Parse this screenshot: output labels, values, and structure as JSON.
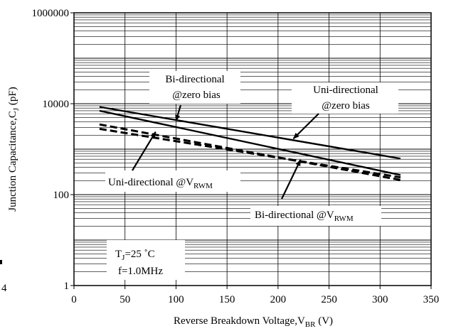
{
  "chart_data": {
    "type": "line",
    "title": "",
    "xlabel": {
      "main": "Reverse  Breakdown Voltage,V",
      "sub": "BR",
      "unit": " (V)"
    },
    "ylabel": {
      "main": "Junction Capacitance,C",
      "sub": "J",
      "unit": " (pF)"
    },
    "xlim": [
      0,
      350
    ],
    "ylim": [
      1,
      1000000
    ],
    "y_scale": "log",
    "grid": true,
    "x_ticks": [
      0,
      50,
      100,
      150,
      200,
      250,
      300,
      350
    ],
    "x_tick_labels": [
      "0",
      "50",
      "100",
      "150",
      "200",
      "250",
      "300",
      "350"
    ],
    "y_ticks": [
      1,
      100,
      10000,
      1000000
    ],
    "y_tick_labels": [
      "1",
      "100",
      "10000",
      "1000000"
    ],
    "series": [
      {
        "name": "Uni-directional @zero bias",
        "style": "solid",
        "x": [
          25,
          320
        ],
        "y": [
          8500,
          620
        ]
      },
      {
        "name": "Bi-directional @zero bias",
        "style": "solid",
        "x": [
          25,
          320
        ],
        "y": [
          7000,
          270
        ]
      },
      {
        "name": "Uni-directional @VRWM",
        "style": "dashed",
        "x": [
          25,
          320
        ],
        "y": [
          3500,
          210
        ]
      },
      {
        "name": "Bi-directional @VRWM",
        "style": "dashed",
        "x": [
          25,
          320
        ],
        "y": [
          2800,
          240
        ]
      }
    ],
    "annotations": [
      {
        "id": "bi-zero",
        "lines": [
          "Bi-directional",
          "@zero bias"
        ],
        "arrow_to": [
          100,
          4200
        ]
      },
      {
        "id": "uni-zero",
        "lines": [
          "Uni-directional",
          "@zero bias"
        ],
        "arrow_to": [
          215,
          1700
        ]
      },
      {
        "id": "uni-vrwm",
        "main": "Uni-directional @V",
        "sub": "RWM",
        "arrow_to": [
          80,
          2400
        ]
      },
      {
        "id": "bi-vrwm",
        "main": "Bi-directional @V",
        "sub": "RWM",
        "arrow_to": [
          222,
          580
        ]
      }
    ],
    "conditions": {
      "temp_main": "T",
      "temp_sub": "J",
      "temp_value": "=25 ˚C",
      "freq": "f=1.0MHz"
    },
    "left_edge_fragment": "4"
  }
}
